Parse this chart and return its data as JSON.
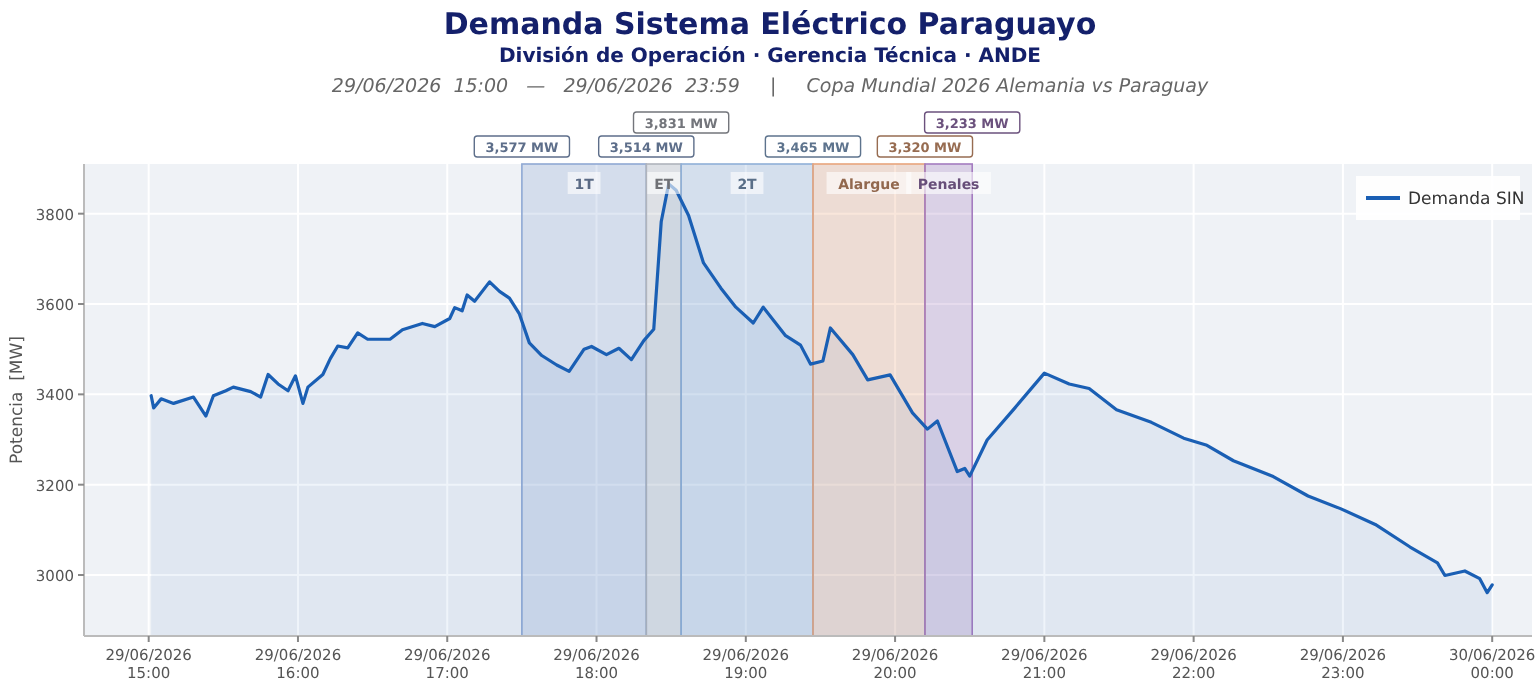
{
  "chart_data": {
    "type": "area",
    "title": "Demanda Sistema Eléctrico Paraguayo",
    "subtitle": "División de Operación  ·  Gerencia Técnica  ·  ANDE",
    "ylabel": "Potencia  [MW]",
    "annotations": [
      "29/06/2026  15:00   —   29/06/2026  23:59     |     Copa Mundial 2026 Alemania vs Paraguay",
      "3,577 MW",
      "3,514 MW",
      "3,831 MW",
      "3,465 MW",
      "3,320 MW",
      "3,233 MW"
    ],
    "bands": [
      {
        "axis": "x",
        "from": "2026-06-29T17:30",
        "to": "2026-06-29T18:20",
        "label": "1T",
        "color": "#8fa9d4"
      },
      {
        "axis": "x",
        "from": "2026-06-29T18:20",
        "to": "2026-06-29T18:34",
        "label": "ET",
        "color": "#b0b4bc"
      },
      {
        "axis": "x",
        "from": "2026-06-29T18:34",
        "to": "2026-06-29T19:27",
        "label": "2T",
        "color": "#8fb0d8"
      },
      {
        "axis": "x",
        "from": "2026-06-29T19:27",
        "to": "2026-06-29T20:12",
        "label": "Alargue",
        "color": "#e8a57c"
      },
      {
        "axis": "x",
        "from": "2026-06-29T20:12",
        "to": "2026-06-29T20:31",
        "label": "Penales",
        "color": "#a47cc0"
      }
    ],
    "series": [
      {
        "name": "Demanda SIN",
        "color": "#1a5fb4",
        "x": [
          "2026-06-29T15:01",
          "2026-06-29T15:02",
          "2026-06-29T15:05",
          "2026-06-29T15:10",
          "2026-06-29T15:18",
          "2026-06-29T15:23",
          "2026-06-29T15:26",
          "2026-06-29T15:31",
          "2026-06-29T15:34",
          "2026-06-29T15:41",
          "2026-06-29T15:45",
          "2026-06-29T15:48",
          "2026-06-29T15:52",
          "2026-06-29T15:56",
          "2026-06-29T15:59",
          "2026-06-29T16:02",
          "2026-06-29T16:04",
          "2026-06-29T16:10",
          "2026-06-29T16:13",
          "2026-06-29T16:16",
          "2026-06-29T16:20",
          "2026-06-29T16:24",
          "2026-06-29T16:28",
          "2026-06-29T16:37",
          "2026-06-29T16:42",
          "2026-06-29T16:50",
          "2026-06-29T16:55",
          "2026-06-29T17:01",
          "2026-06-29T17:03",
          "2026-06-29T17:06",
          "2026-06-29T17:08",
          "2026-06-29T17:11",
          "2026-06-29T17:17",
          "2026-06-29T17:21",
          "2026-06-29T17:25",
          "2026-06-29T17:29",
          "2026-06-29T17:33",
          "2026-06-29T17:38",
          "2026-06-29T17:44",
          "2026-06-29T17:49",
          "2026-06-29T17:55",
          "2026-06-29T17:58",
          "2026-06-29T18:04",
          "2026-06-29T18:09",
          "2026-06-29T18:14",
          "2026-06-29T18:19",
          "2026-06-29T18:23",
          "2026-06-29T18:26",
          "2026-06-29T18:29",
          "2026-06-29T18:32",
          "2026-06-29T18:37",
          "2026-06-29T18:43",
          "2026-06-29T18:50",
          "2026-06-29T18:56",
          "2026-06-29T19:03",
          "2026-06-29T19:07",
          "2026-06-29T19:16",
          "2026-06-29T19:22",
          "2026-06-29T19:26",
          "2026-06-29T19:31",
          "2026-06-29T19:34",
          "2026-06-29T19:43",
          "2026-06-29T19:49",
          "2026-06-29T19:58",
          "2026-06-29T20:07",
          "2026-06-29T20:13",
          "2026-06-29T20:17",
          "2026-06-29T20:25",
          "2026-06-29T20:28",
          "2026-06-29T20:30",
          "2026-06-29T20:37",
          "2026-06-29T20:48",
          "2026-06-29T21:00",
          "2026-06-29T21:10",
          "2026-06-29T21:18",
          "2026-06-29T21:29",
          "2026-06-29T21:43",
          "2026-06-29T21:56",
          "2026-06-29T22:05",
          "2026-06-29T22:16",
          "2026-06-29T22:32",
          "2026-06-29T22:46",
          "2026-06-29T22:59",
          "2026-06-29T23:13",
          "2026-06-29T23:27",
          "2026-06-29T23:38",
          "2026-06-29T23:41",
          "2026-06-29T23:49",
          "2026-06-29T23:55",
          "2026-06-29T23:58",
          "2026-06-30T00:00"
        ],
        "values": [
          3397,
          3370,
          3390,
          3380,
          3394,
          3352,
          3397,
          3408,
          3416,
          3406,
          3394,
          3444,
          3423,
          3408,
          3441,
          3380,
          3416,
          3444,
          3479,
          3507,
          3503,
          3536,
          3522,
          3522,
          3543,
          3557,
          3550,
          3568,
          3592,
          3585,
          3620,
          3606,
          3649,
          3628,
          3613,
          3578,
          3514,
          3486,
          3465,
          3451,
          3500,
          3506,
          3488,
          3502,
          3477,
          3519,
          3544,
          3782,
          3866,
          3852,
          3796,
          3691,
          3635,
          3593,
          3558,
          3593,
          3530,
          3509,
          3467,
          3474,
          3547,
          3488,
          3432,
          3443,
          3359,
          3323,
          3341,
          3229,
          3236,
          3219,
          3299,
          3369,
          3447,
          3423,
          3413,
          3366,
          3338,
          3303,
          3288,
          3253,
          3218,
          3175,
          3147,
          3112,
          3062,
          3027,
          2999,
          3009,
          2992,
          2961,
          2978
        ]
      }
    ],
    "xlim": [
      "2026-06-29T14:34",
      "2026-06-30T00:16"
    ],
    "xticks": [
      {
        "value": "2026-06-29T15:00",
        "label": "29/06/2026 15:00"
      },
      {
        "value": "2026-06-29T16:00",
        "label": "29/06/2026 16:00"
      },
      {
        "value": "2026-06-29T17:00",
        "label": "29/06/2026 17:00"
      },
      {
        "value": "2026-06-29T18:00",
        "label": "29/06/2026 18:00"
      },
      {
        "value": "2026-06-29T19:00",
        "label": "29/06/2026 19:00"
      },
      {
        "value": "2026-06-29T20:00",
        "label": "29/06/2026 20:00"
      },
      {
        "value": "2026-06-29T21:00",
        "label": "29/06/2026 21:00"
      },
      {
        "value": "2026-06-29T22:00",
        "label": "29/06/2026 22:00"
      },
      {
        "value": "2026-06-29T23:00",
        "label": "29/06/2026 23:00"
      },
      {
        "value": "2026-06-30T00:00",
        "label": "30/06/2026 00:00"
      }
    ],
    "ylim": [
      2865,
      3910
    ],
    "yticks": [
      3000,
      3200,
      3400,
      3600,
      3800
    ],
    "grid": true,
    "legend": "top right"
  }
}
